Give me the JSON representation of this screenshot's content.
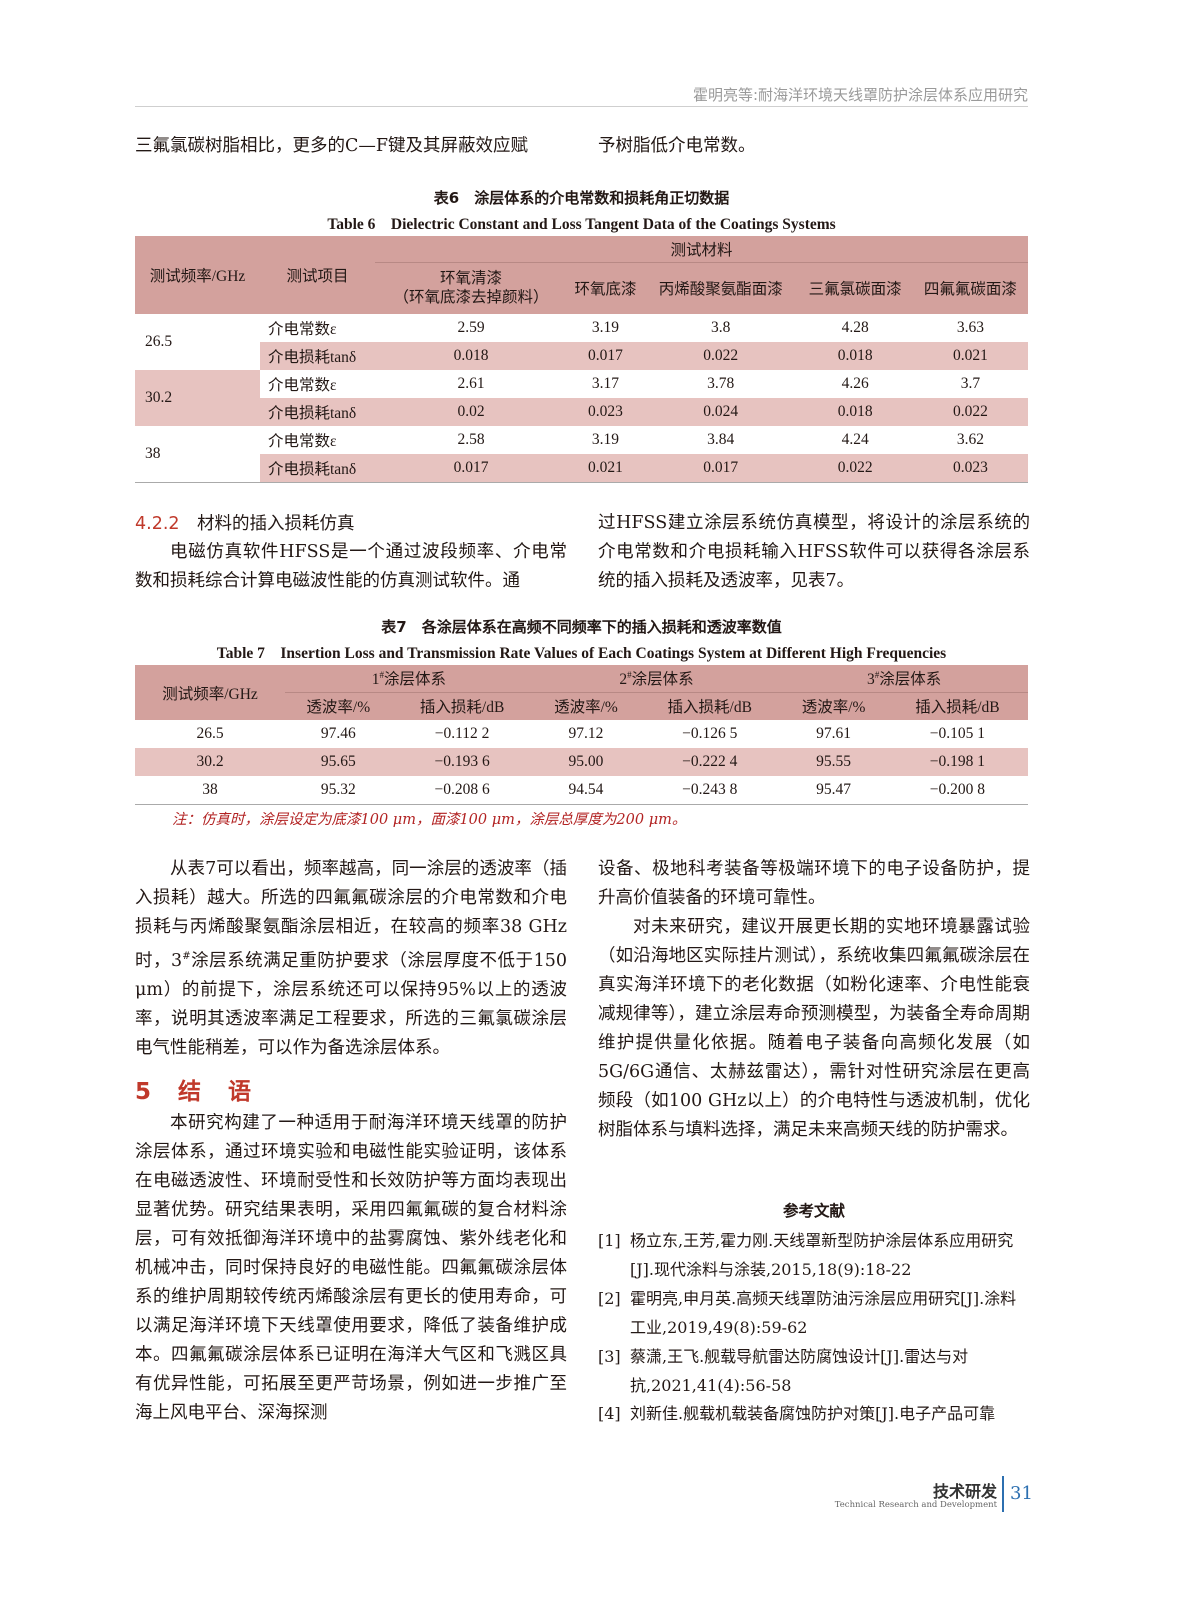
{
  "header": {
    "running_title": "霍明亮等:耐海洋环境天线罩防护涂层体系应用研究"
  },
  "intro": {
    "left": "三氟氯碳树脂相比，更多的C—F键及其屏蔽效应赋",
    "right": "予树脂低介电常数。"
  },
  "table6": {
    "caption_cn": "表6　涂层体系的介电常数和损耗角正切数据",
    "caption_en": "Table 6　Dielectric Constant and Loss Tangent Data of the Coatings Systems",
    "col_freq": "测试频率/GHz",
    "col_item": "测试项目",
    "col_group": "测试材料",
    "materials": [
      "环氧清漆",
      "环氧底漆",
      "丙烯酸聚氨酯面漆",
      "三氟氯碳面漆",
      "四氟氟碳面漆"
    ],
    "material0_note": "（环氧底漆去掉颜料）",
    "item_eps": "介电常数ε",
    "item_tan": "介电损耗tanδ",
    "rows": [
      {
        "freq": "26.5",
        "eps": [
          "2.59",
          "3.19",
          "3.8",
          "4.28",
          "3.63"
        ],
        "tan": [
          "0.018",
          "0.017",
          "0.022",
          "0.018",
          "0.021"
        ]
      },
      {
        "freq": "30.2",
        "eps": [
          "2.61",
          "3.17",
          "3.78",
          "4.26",
          "3.7"
        ],
        "tan": [
          "0.02",
          "0.023",
          "0.024",
          "0.018",
          "0.022"
        ]
      },
      {
        "freq": "38",
        "eps": [
          "2.58",
          "3.19",
          "3.84",
          "4.24",
          "3.62"
        ],
        "tan": [
          "0.017",
          "0.021",
          "0.017",
          "0.022",
          "0.023"
        ]
      }
    ]
  },
  "sec422": {
    "heading_num": "4.2.2",
    "heading": "材料的插入损耗仿真",
    "left": "电磁仿真软件HFSS是一个通过波段频率、介电常数和损耗综合计算电磁波性能的仿真测试软件。通",
    "right": "过HFSS建立涂层系统仿真模型，将设计的涂层系统的介电常数和介电损耗输入HFSS软件可以获得各涂层系统的插入损耗及透波率，见表7。"
  },
  "table7": {
    "caption_cn": "表7　各涂层体系在高频不同频率下的插入损耗和透波率数值",
    "caption_en": "Table 7　Insertion Loss and Transmission Rate Values of Each Coatings System at Different High Frequencies",
    "col_freq": "测试频率/GHz",
    "groups": [
      {
        "num": "1",
        "label": "涂层体系"
      },
      {
        "num": "2",
        "label": "涂层体系"
      },
      {
        "num": "3",
        "label": "涂层体系"
      }
    ],
    "sup": "#",
    "sub_trans": "透波率/%",
    "sub_loss": "插入损耗/dB",
    "rows": [
      {
        "freq": "26.5",
        "vals": [
          "97.46",
          "−0.112 2",
          "97.12",
          "−0.126 5",
          "97.61",
          "−0.105 1"
        ]
      },
      {
        "freq": "30.2",
        "vals": [
          "95.65",
          "−0.193 6",
          "95.00",
          "−0.222 4",
          "95.55",
          "−0.198 1"
        ]
      },
      {
        "freq": "38",
        "vals": [
          "95.32",
          "−0.208 6",
          "94.54",
          "−0.243 8",
          "95.47",
          "−0.200 8"
        ]
      }
    ],
    "note": "注：仿真时，涂层设定为底漆100 μm，面漆100 μm，涂层总厚度为200 μm。"
  },
  "body": {
    "p1_a": "从表7可以看出，频率越高，同一涂层的透波率（插入损耗）越大。所选的四氟氟碳涂层的介电常数和介电损耗与丙烯酸聚氨酯涂层相近，在较高的频率38 GHz时，3",
    "p1_sup": "#",
    "p1_b": "涂层系统满足重防护要求（涂层厚度不低于150 μm）的前提下，涂层系统还可以保持95%以上的透波率，说明其透波率满足工程要求，所选的三氟氯碳涂层电气性能稍差，可以作为备选涂层体系。",
    "sec5_heading": "5　结　语",
    "p2": "本研究构建了一种适用于耐海洋环境天线罩的防护涂层体系，通过环境实验和电磁性能实验证明，该体系在电磁透波性、环境耐受性和长效防护等方面均表现出显著优势。研究结果表明，采用四氟氟碳的复合材料涂层，可有效抵御海洋环境中的盐雾腐蚀、紫外线老化和机械冲击，同时保持良好的电磁性能。四氟氟碳涂层体系的维护周期较传统丙烯酸涂层有更长的使用寿命，可以满足海洋环境下天线罩使用要求，降低了装备维护成本。四氟氟碳涂层体系已证明在海洋大气区和飞溅区具有优异性能，可拓展至更严苛场景，例如进一步推广至海上风电平台、深海探测",
    "p3": "设备、极地科考装备等极端环境下的电子设备防护，提升高价值装备的环境可靠性。",
    "p4": "对未来研究，建议开展更长期的实地环境暴露试验（如沿海地区实际挂片测试），系统收集四氟氟碳涂层在真实海洋环境下的老化数据（如粉化速率、介电性能衰减规律等），建立涂层寿命预测模型，为装备全寿命周期维护提供量化依据。随着电子装备向高频化发展（如5G/6G通信、太赫兹雷达），需针对性研究涂层在更高频段（如100 GHz以上）的介电特性与透波机制，优化树脂体系与填料选择，满足未来高频天线的防护需求。"
  },
  "references": {
    "heading": "参考文献",
    "items": [
      {
        "n": "[1]",
        "text": "杨立东,王芳,霍力刚.天线罩新型防护涂层体系应用研究[J].现代涂料与涂装,2015,18(9):18-22"
      },
      {
        "n": "[2]",
        "text": "霍明亮,申月英.高频天线罩防油污涂层应用研究[J].涂料工业,2019,49(8):59-62"
      },
      {
        "n": "[3]",
        "text": "蔡潇,王飞.舰载导航雷达防腐蚀设计[J].雷达与对抗,2021,41(4):56-58"
      },
      {
        "n": "[4]",
        "text": "刘新佳.舰载机载装备腐蚀防护对策[J].电子产品可靠"
      }
    ]
  },
  "footer": {
    "section_cn": "技术研发",
    "section_en": "Technical Research and Development",
    "page": "31"
  },
  "colors": {
    "accent_red": "#c0392b",
    "table_header": "#d3a19d",
    "table_shade": "#e7c3c0",
    "page_blue": "#2c6fb0"
  }
}
